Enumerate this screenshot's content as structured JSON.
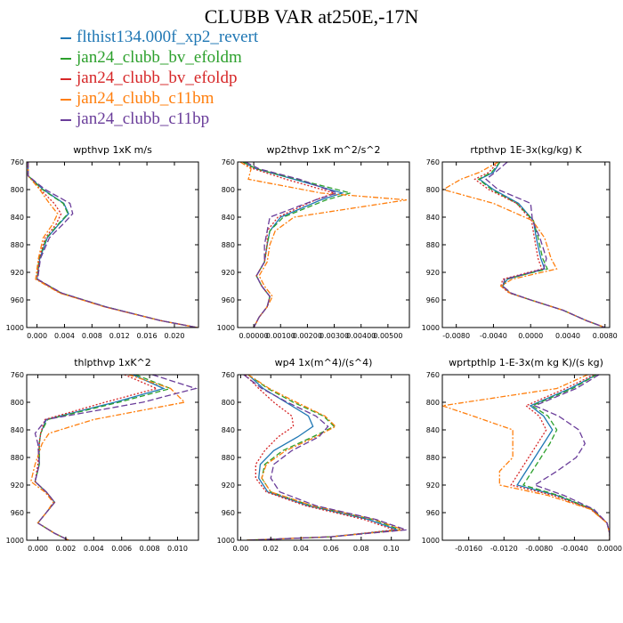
{
  "title": "CLUBB VAR at250E,-17N",
  "legend": [
    {
      "label": "flthist134.000f_xp2_revert",
      "color": "#1f77b4",
      "dash": "none"
    },
    {
      "label": "jan24_clubb_bv_efoldm",
      "color": "#2ca02c",
      "dash": "6,3"
    },
    {
      "label": "jan24_clubb_bv_efoldp",
      "color": "#d62728",
      "dash": "2,2"
    },
    {
      "label": "jan24_clubb_c11bm",
      "color": "#ff7f0e",
      "dash": "6,2,2,2"
    },
    {
      "label": "jan24_clubb_c11bp",
      "color": "#6a3d9a",
      "dash": "7,3"
    }
  ],
  "chart_data": [
    {
      "type": "line",
      "title": "wpthvp   1xK m/s",
      "xlim": [
        -0.0015,
        0.0235
      ],
      "ylim": [
        760,
        1000
      ],
      "xticks": [
        "0.000",
        "0.004",
        "0.008",
        "0.012",
        "0.016",
        "0.020"
      ],
      "xtick_values": [
        0,
        0.004,
        0.008,
        0.012,
        0.016,
        0.02
      ],
      "yticks": [
        760,
        800,
        840,
        880,
        920,
        960,
        1000
      ],
      "y": [
        760,
        780,
        800,
        820,
        835,
        850,
        870,
        900,
        930,
        950,
        970,
        990,
        1000
      ],
      "series": [
        {
          "name": "flthist134.000f_xp2_revert",
          "values": [
            -0.0013,
            -0.0013,
            0.0009,
            0.0039,
            0.0046,
            0.0032,
            0.0015,
            0.0004,
            0,
            0.0035,
            0.01,
            0.018,
            0.0233
          ]
        },
        {
          "name": "jan24_clubb_bv_efoldm",
          "values": [
            -0.0013,
            -0.0013,
            0.0008,
            0.0038,
            0.0045,
            0.0031,
            0.0014,
            0.0003,
            0,
            0.0035,
            0.01,
            0.018,
            0.0233
          ]
        },
        {
          "name": "jan24_clubb_bv_efoldp",
          "values": [
            -0.0013,
            -0.0013,
            0.0005,
            0.0025,
            0.0035,
            0.0028,
            0.0012,
            0.0003,
            0,
            0.0034,
            0.0099,
            0.018,
            0.0233
          ]
        },
        {
          "name": "jan24_clubb_c11bm",
          "values": [
            -0.0013,
            -0.0013,
            0.0004,
            0.0018,
            0.003,
            0.0023,
            0.0009,
            0.0002,
            -0.0002,
            0.0033,
            0.0098,
            0.018,
            0.0233
          ]
        },
        {
          "name": "jan24_clubb_c11bp",
          "values": [
            -0.0013,
            -0.0013,
            0.0012,
            0.0048,
            0.0052,
            0.0038,
            0.0018,
            0.0005,
            0.0001,
            0.0036,
            0.01,
            0.018,
            0.0233
          ]
        }
      ]
    },
    {
      "type": "line",
      "title": "wp2thvp   1xK m^2/s^2",
      "xlim": [
        -0.0006,
        0.0058
      ],
      "ylim": [
        760,
        1000
      ],
      "xticks": [
        "0.00000",
        "0.00100",
        "0.00200",
        "0.00300",
        "0.00400",
        "0.00500"
      ],
      "xtick_values": [
        0,
        0.001,
        0.002,
        0.003,
        0.004,
        0.005
      ],
      "yticks": [
        760,
        800,
        840,
        880,
        920,
        960,
        1000
      ],
      "y": [
        760,
        770,
        785,
        805,
        815,
        840,
        860,
        880,
        905,
        925,
        940,
        955,
        970,
        985,
        1000
      ],
      "series": [
        {
          "name": "flthist134.000f_xp2_revert",
          "values": [
            -0.0004,
            0.0001,
            0.0015,
            0.0033,
            0.0025,
            0.001,
            0.0006,
            0.0005,
            0.0004,
            0.0001,
            0.0003,
            0.0006,
            0.0005,
            0.0002,
            0
          ]
        },
        {
          "name": "jan24_clubb_bv_efoldm",
          "values": [
            -0.0004,
            0.0001,
            0.0016,
            0.0036,
            0.0027,
            0.0011,
            0.0006,
            0.0005,
            0.0004,
            0.0001,
            0.0003,
            0.0006,
            0.0005,
            0.0002,
            0
          ]
        },
        {
          "name": "jan24_clubb_bv_efoldp",
          "values": [
            -0.0005,
            0,
            0.0012,
            0.003,
            0.0023,
            0.0009,
            0.0005,
            0.0005,
            0.0004,
            0.0001,
            0.0003,
            0.0006,
            0.0005,
            0.0002,
            0
          ]
        },
        {
          "name": "jan24_clubb_c11bm",
          "values": [
            -0.0005,
            -0.0001,
            -0.0002,
            0.0025,
            0.0057,
            0.0015,
            0.0008,
            0.0006,
            0.0005,
            0.0002,
            0.0004,
            0.0007,
            0.0005,
            0.0002,
            0
          ]
        },
        {
          "name": "jan24_clubb_c11bp",
          "values": [
            -0.0003,
            0.0002,
            0.0017,
            0.0031,
            0.0023,
            0.0006,
            0.0005,
            0.0004,
            0.0004,
            0.0001,
            0.0003,
            0.0006,
            0.0005,
            0.0002,
            0
          ]
        }
      ]
    },
    {
      "type": "line",
      "title": "rtpthvp   1E-3x(kg/kg) K",
      "xlim": [
        -0.0095,
        0.0085
      ],
      "ylim": [
        760,
        1000
      ],
      "xticks": [
        "-0.0080",
        "-0.0040",
        "0.0000",
        "0.0040",
        "0.0080"
      ],
      "xtick_values": [
        -0.008,
        -0.004,
        0,
        0.004,
        0.008
      ],
      "yticks": [
        760,
        800,
        840,
        880,
        920,
        960,
        1000
      ],
      "y": [
        760,
        775,
        785,
        800,
        820,
        845,
        870,
        900,
        915,
        930,
        940,
        950,
        960,
        975,
        990,
        1000
      ],
      "series": [
        {
          "name": "flthist134.000f_xp2_revert",
          "values": [
            -0.0033,
            -0.004,
            -0.0055,
            -0.004,
            -0.0013,
            0.0003,
            0.0006,
            0.0011,
            0.0015,
            -0.0025,
            -0.003,
            -0.0022,
            0,
            0.0035,
            0.006,
            0.008
          ]
        },
        {
          "name": "jan24_clubb_bv_efoldm",
          "values": [
            -0.0033,
            -0.0042,
            -0.0056,
            -0.0042,
            -0.0015,
            0.0003,
            0.0008,
            0.0013,
            0.0018,
            -0.0027,
            -0.003,
            -0.0022,
            0,
            0.0035,
            0.006,
            0.008
          ]
        },
        {
          "name": "jan24_clubb_bv_efoldp",
          "values": [
            -0.0035,
            -0.0045,
            -0.006,
            -0.0045,
            -0.0015,
            0.0001,
            0.0004,
            0.0008,
            0.0012,
            -0.003,
            -0.0032,
            -0.0023,
            0,
            0.0035,
            0.006,
            0.008
          ]
        },
        {
          "name": "jan24_clubb_c11bm",
          "values": [
            -0.0035,
            -0.0055,
            -0.0075,
            -0.0094,
            -0.004,
            0.0002,
            0.0015,
            0.0022,
            0.0028,
            -0.002,
            -0.0032,
            -0.0022,
            0,
            0.0035,
            0.006,
            0.008
          ]
        },
        {
          "name": "jan24_clubb_c11bp",
          "values": [
            -0.0025,
            -0.0038,
            -0.0048,
            -0.0035,
            0,
            0.0002,
            0.001,
            0.0017,
            0.0014,
            -0.0028,
            -0.003,
            -0.0021,
            0,
            0.0035,
            0.006,
            0.008
          ]
        }
      ]
    },
    {
      "type": "line",
      "title": "thlpthvp   1xK^2",
      "xlim": [
        -0.0008,
        0.0115
      ],
      "ylim": [
        760,
        1000
      ],
      "xticks": [
        "0.000",
        "0.002",
        "0.004",
        "0.006",
        "0.008",
        "0.010"
      ],
      "xtick_values": [
        0,
        0.002,
        0.004,
        0.006,
        0.008,
        0.01
      ],
      "yticks": [
        760,
        800,
        840,
        880,
        920,
        960,
        1000
      ],
      "y": [
        760,
        780,
        800,
        825,
        845,
        860,
        890,
        915,
        930,
        945,
        960,
        975,
        990,
        1000
      ],
      "series": [
        {
          "name": "flthist134.000f_xp2_revert",
          "values": [
            0.0068,
            0.009,
            0.0055,
            0.0006,
            0.0002,
            0.0001,
            0.0001,
            -0.0002,
            0.0006,
            0.0012,
            0.0006,
            0,
            0.0012,
            0.0022
          ]
        },
        {
          "name": "jan24_clubb_bv_efoldm",
          "values": [
            0.007,
            0.0095,
            0.0058,
            0.0007,
            0.0002,
            0.0001,
            0.0001,
            -0.0002,
            0.0006,
            0.0012,
            0.0006,
            0,
            0.0012,
            0.0022
          ]
        },
        {
          "name": "jan24_clubb_bv_efoldp",
          "values": [
            0.0062,
            0.0085,
            0.0048,
            0.0005,
            0.0002,
            0.0001,
            0,
            -0.0002,
            0.0006,
            0.0012,
            0.0006,
            0,
            0.0012,
            0.0022
          ]
        },
        {
          "name": "jan24_clubb_c11bm",
          "values": [
            0.0065,
            0.0095,
            0.0105,
            0.004,
            0.0008,
            0.0003,
            -0.0002,
            -0.0005,
            0.0005,
            0.0011,
            0.0006,
            0,
            0.0012,
            0.0022
          ]
        },
        {
          "name": "jan24_clubb_c11bp",
          "values": [
            0.0082,
            0.0113,
            0.0075,
            0.0006,
            -0.0002,
            0,
            0.0001,
            -0.0002,
            0.0006,
            0.0012,
            0.0006,
            0,
            0.0012,
            0.0022
          ]
        }
      ]
    },
    {
      "type": "line",
      "title": "wp4   1x(m^4)/(s^4)",
      "xlim": [
        -0.002,
        0.112
      ],
      "ylim": [
        760,
        1000
      ],
      "xticks": [
        "0.00",
        "0.02",
        "0.04",
        "0.06",
        "0.08",
        "0.10"
      ],
      "xtick_values": [
        0,
        0.02,
        0.04,
        0.06,
        0.08,
        0.1
      ],
      "yticks": [
        760,
        800,
        840,
        880,
        920,
        960,
        1000
      ],
      "y": [
        760,
        780,
        800,
        820,
        835,
        850,
        870,
        890,
        910,
        930,
        950,
        970,
        985,
        995,
        1000
      ],
      "series": [
        {
          "name": "flthist134.000f_xp2_revert",
          "values": [
            0.005,
            0.015,
            0.03,
            0.045,
            0.048,
            0.038,
            0.022,
            0.013,
            0.012,
            0.018,
            0.045,
            0.085,
            0.104,
            0.06,
            0.004
          ]
        },
        {
          "name": "jan24_clubb_bv_efoldm",
          "values": [
            0.005,
            0.018,
            0.035,
            0.055,
            0.062,
            0.048,
            0.028,
            0.016,
            0.014,
            0.02,
            0.047,
            0.088,
            0.106,
            0.06,
            0.004
          ]
        },
        {
          "name": "jan24_clubb_bv_efoldp",
          "values": [
            0.003,
            0.012,
            0.022,
            0.034,
            0.035,
            0.025,
            0.016,
            0.01,
            0.01,
            0.017,
            0.043,
            0.082,
            0.102,
            0.06,
            0.004
          ]
        },
        {
          "name": "jan24_clubb_c11bm",
          "values": [
            0.005,
            0.019,
            0.037,
            0.056,
            0.063,
            0.05,
            0.03,
            0.017,
            0.014,
            0.02,
            0.048,
            0.089,
            0.108,
            0.06,
            0.004
          ]
        },
        {
          "name": "jan24_clubb_c11bp",
          "values": [
            0.002,
            0.014,
            0.031,
            0.05,
            0.058,
            0.052,
            0.034,
            0.022,
            0.02,
            0.026,
            0.05,
            0.09,
            0.11,
            0.06,
            0.004
          ]
        }
      ]
    },
    {
      "type": "line",
      "title": "wprtpthlp   1-E-3x(m kg K)/(s kg)",
      "xlim": [
        -0.019,
        0
      ],
      "ylim": [
        760,
        1000
      ],
      "xticks": [
        "-0.0160",
        "-0.0120",
        "-0.0080",
        "-0.0040",
        "0.0000"
      ],
      "xtick_values": [
        -0.016,
        -0.012,
        -0.008,
        -0.004,
        0
      ],
      "yticks": [
        760,
        800,
        840,
        880,
        920,
        960,
        1000
      ],
      "y": [
        760,
        780,
        805,
        820,
        840,
        860,
        880,
        900,
        920,
        935,
        955,
        975,
        990,
        1000
      ],
      "series": [
        {
          "name": "flthist134.000f_xp2_revert",
          "values": [
            -0.0015,
            -0.0045,
            -0.009,
            -0.0075,
            -0.0065,
            -0.0075,
            -0.0085,
            -0.0095,
            -0.0105,
            -0.006,
            -0.002,
            -0.0003,
            0,
            0
          ]
        },
        {
          "name": "jan24_clubb_bv_efoldm",
          "values": [
            -0.0015,
            -0.0042,
            -0.0088,
            -0.007,
            -0.006,
            -0.0068,
            -0.0078,
            -0.0088,
            -0.0098,
            -0.0058,
            -0.002,
            -0.0003,
            0,
            0
          ]
        },
        {
          "name": "jan24_clubb_bv_efoldp",
          "values": [
            -0.0018,
            -0.005,
            -0.0095,
            -0.008,
            -0.0072,
            -0.0082,
            -0.0092,
            -0.0102,
            -0.0112,
            -0.0064,
            -0.0021,
            -0.0003,
            0,
            0
          ]
        },
        {
          "name": "jan24_clubb_c11bm",
          "values": [
            -0.0025,
            -0.006,
            -0.019,
            -0.0155,
            -0.011,
            -0.011,
            -0.011,
            -0.0125,
            -0.0125,
            -0.007,
            -0.0022,
            -0.0003,
            0,
            0
          ]
        },
        {
          "name": "jan24_clubb_c11bp",
          "values": [
            -0.0012,
            -0.0038,
            -0.0085,
            -0.0058,
            -0.0035,
            -0.0028,
            -0.0038,
            -0.006,
            -0.0085,
            -0.0052,
            -0.0018,
            -0.0003,
            0,
            0
          ]
        }
      ]
    }
  ]
}
